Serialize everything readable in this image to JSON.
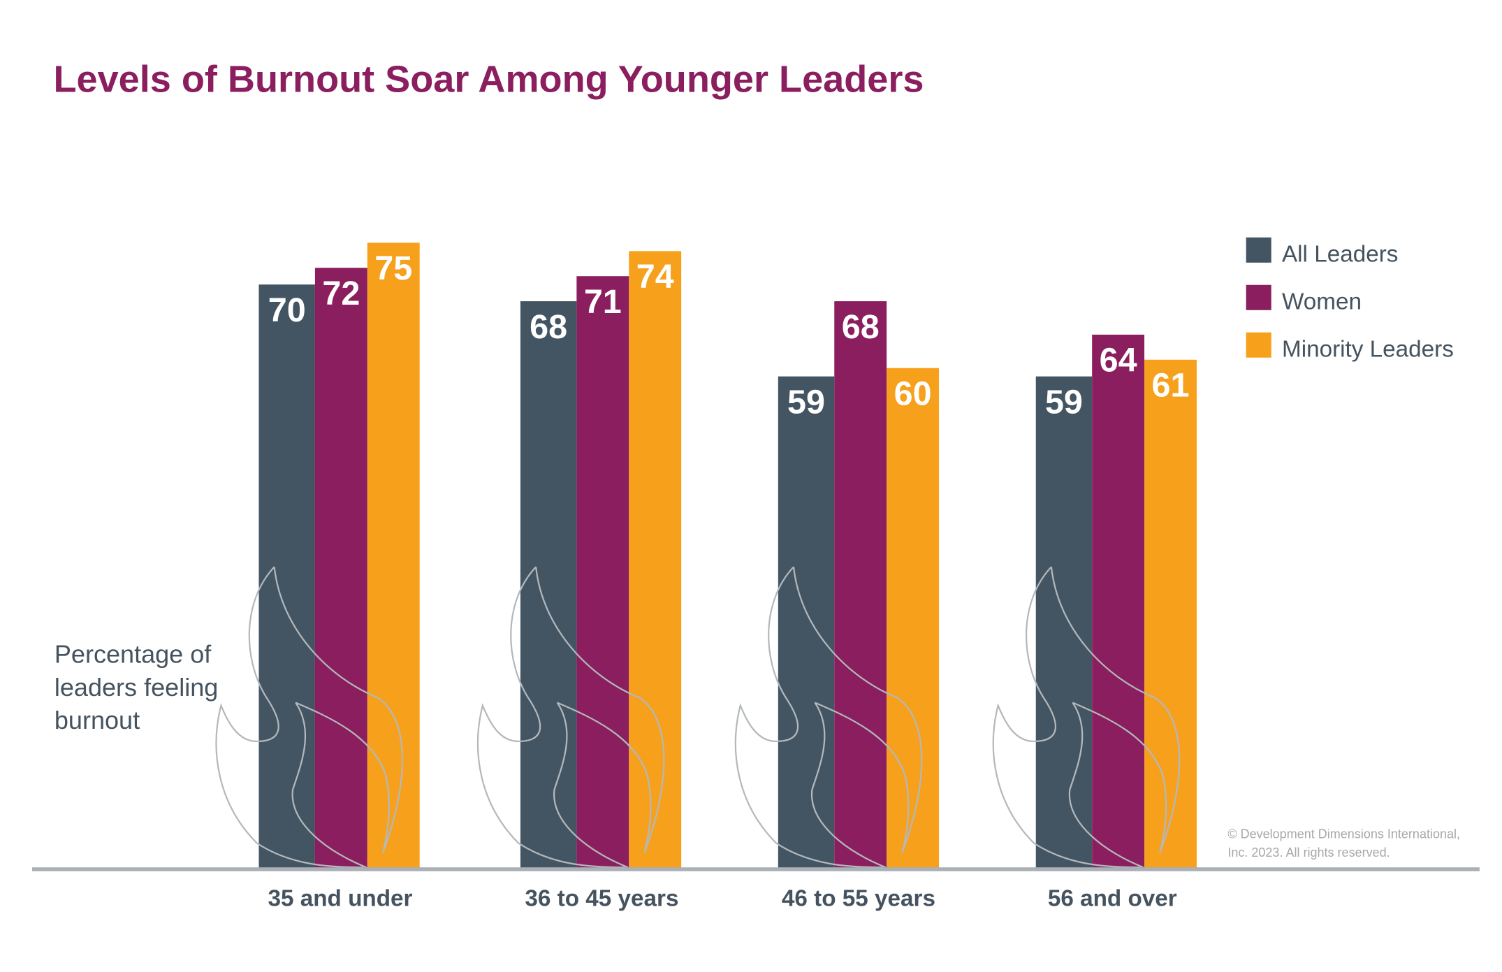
{
  "chart_data": {
    "type": "bar",
    "title": "Levels of Burnout Soar Among Younger Leaders",
    "ylabel_lines": [
      "Percentage of",
      "leaders feeling",
      "burnout"
    ],
    "categories": [
      "35 and under",
      "36 to 45 years",
      "46 to 55 years",
      "56 and over"
    ],
    "series": [
      {
        "name": "All Leaders",
        "color": "#435563",
        "values": [
          70,
          68,
          59,
          59
        ]
      },
      {
        "name": "Women",
        "color": "#8a1e5e",
        "values": [
          72,
          71,
          68,
          64
        ]
      },
      {
        "name": "Minority Leaders",
        "color": "#f7a01c",
        "values": [
          75,
          74,
          60,
          61
        ]
      }
    ],
    "ylim": [
      0,
      100
    ],
    "grid": false,
    "legend_position": "right",
    "data_labels": true,
    "title_color": "#8a1e5e",
    "copyright_lines": [
      "© Development Dimensions International,",
      "Inc. 2023. All rights reserved."
    ]
  }
}
